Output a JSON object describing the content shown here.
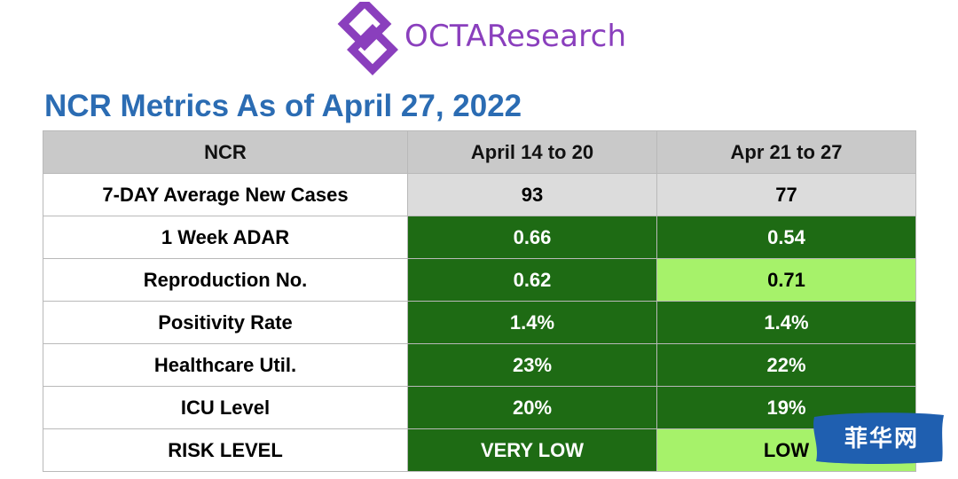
{
  "brand": {
    "name": "OCTAResearch",
    "color": "#8a3fbd"
  },
  "title": "NCR Metrics As of April 27, 2022",
  "table": {
    "headers": [
      "NCR",
      "April 14 to 20",
      "Apr 21 to 27"
    ],
    "rows": [
      {
        "metric": "7-DAY Average New Cases",
        "week1": "93",
        "week2": "77",
        "week1_color": "neutral",
        "week2_color": "neutral"
      },
      {
        "metric": "1 Week ADAR",
        "week1": "0.66",
        "week2": "0.54",
        "week1_color": "dark-green",
        "week2_color": "dark-green"
      },
      {
        "metric": "Reproduction No.",
        "week1": "0.62",
        "week2": "0.71",
        "week1_color": "dark-green",
        "week2_color": "light-green"
      },
      {
        "metric": "Positivity Rate",
        "week1": "1.4%",
        "week2": "1.4%",
        "week1_color": "dark-green",
        "week2_color": "dark-green"
      },
      {
        "metric": "Healthcare Util.",
        "week1": "23%",
        "week2": "22%",
        "week1_color": "dark-green",
        "week2_color": "dark-green"
      },
      {
        "metric": "ICU Level",
        "week1": "20%",
        "week2": "19%",
        "week1_color": "dark-green",
        "week2_color": "dark-green"
      },
      {
        "metric": "RISK LEVEL",
        "week1": "VERY LOW",
        "week2": "LOW",
        "week1_color": "dark-green",
        "week2_color": "light-green"
      }
    ],
    "colors": {
      "dark_green": "#1e6b14",
      "light_green": "#a6f26a",
      "header_gray": "#c9c9c9",
      "neutral_gray": "#dcdcdc"
    }
  },
  "watermark": {
    "text": "菲华网",
    "color": "#1f5fb0"
  }
}
